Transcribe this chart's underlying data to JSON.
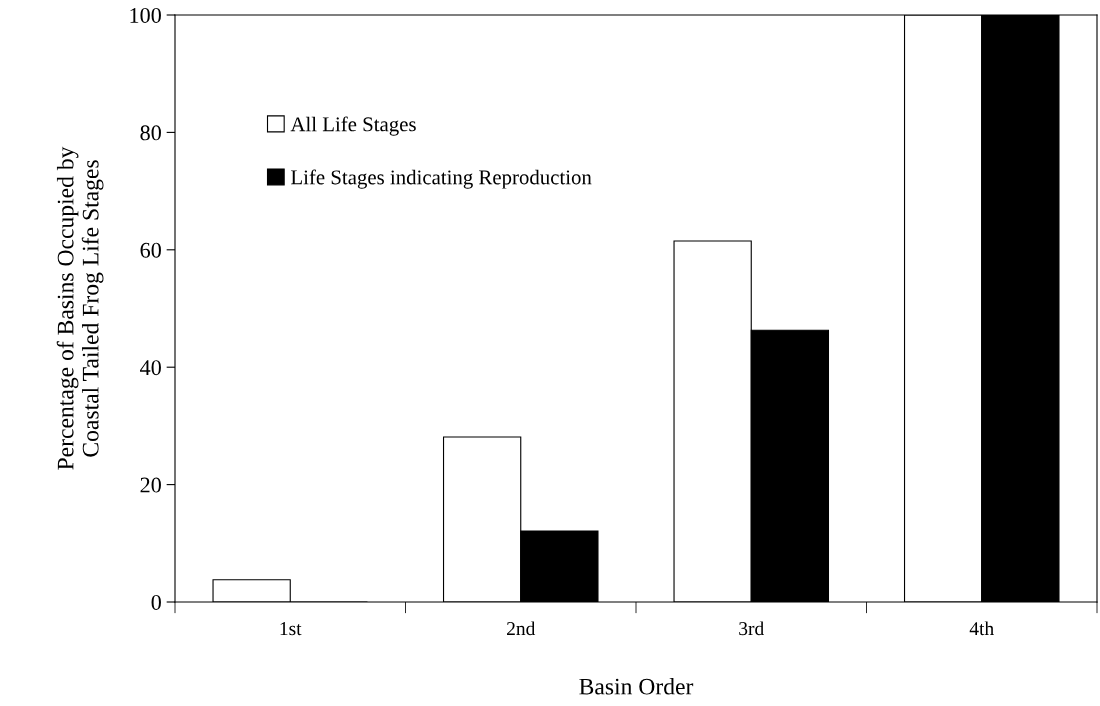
{
  "chart_data": {
    "type": "bar",
    "xlabel": "Basin Order",
    "ylabel": "Percentage of Basins Occupied by\nCoastal Tailed Frog Life Stages",
    "categories": [
      "1st",
      "2nd",
      "3rd",
      "4th"
    ],
    "series": [
      {
        "name": "All Life Stages",
        "color": "#ffffff",
        "values": [
          3.8,
          28.1,
          61.5,
          100
        ]
      },
      {
        "name": "Life Stages indicating Reproduction",
        "color": "#000000",
        "values": [
          0,
          12.1,
          46.3,
          100
        ]
      }
    ],
    "ylim": [
      0,
      100
    ],
    "yticks": [
      0,
      20,
      40,
      60,
      80,
      100
    ],
    "grid": false,
    "legend": "top left"
  }
}
